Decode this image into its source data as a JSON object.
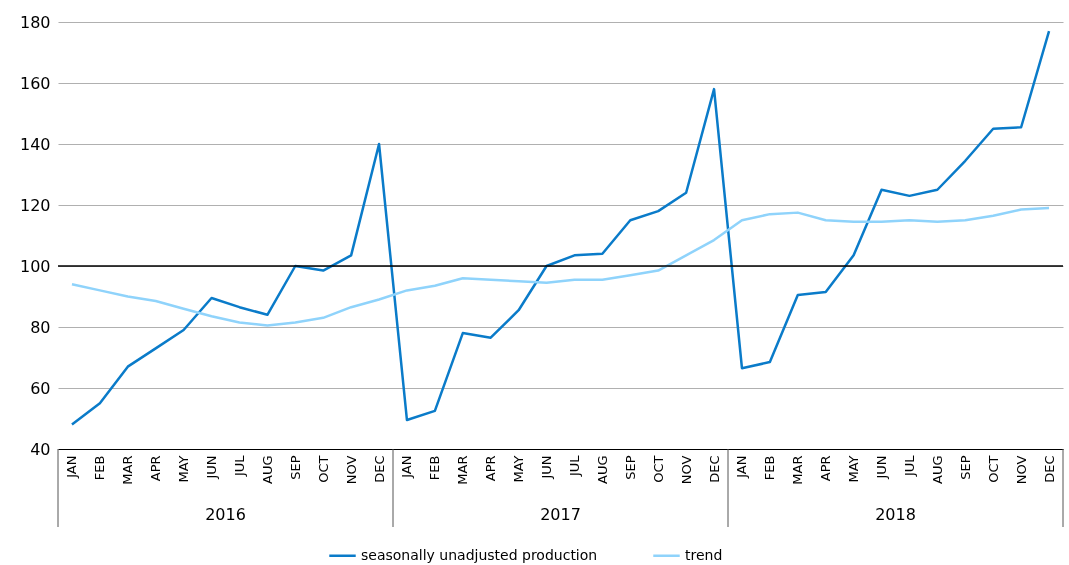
{
  "chart_data": {
    "type": "line",
    "categories": [
      "JAN",
      "FEB",
      "MAR",
      "APR",
      "MAY",
      "JUN",
      "JUL",
      "AUG",
      "SEP",
      "OCT",
      "NOV",
      "DEC",
      "JAN",
      "FEB",
      "MAR",
      "APR",
      "MAY",
      "JUN",
      "JUL",
      "AUG",
      "SEP",
      "OCT",
      "NOV",
      "DEC",
      "JAN",
      "FEB",
      "MAR",
      "APR",
      "MAY",
      "JUN",
      "JUL",
      "AUG",
      "SEP",
      "OCT",
      "NOV",
      "DEC"
    ],
    "series": [
      {
        "name": "seasonally unadjusted production",
        "color": "#0a7bc9",
        "values": [
          48,
          55,
          67,
          73,
          79,
          89.5,
          86.5,
          84,
          100,
          98.5,
          103.5,
          140,
          49.5,
          52.5,
          78,
          76.5,
          85.5,
          100,
          103.5,
          104,
          115,
          118,
          124,
          158,
          66.5,
          68.5,
          90.5,
          91.5,
          103.5,
          125,
          123,
          125,
          134.5,
          145,
          145.5,
          177
        ]
      },
      {
        "name": "trend",
        "color": "#8fd3fb",
        "values": [
          94,
          92,
          90,
          88.5,
          86,
          83.5,
          81.5,
          80.5,
          81.5,
          83,
          86.5,
          89,
          92,
          93.5,
          96,
          95.5,
          95,
          94.5,
          95.5,
          95.5,
          97,
          98.5,
          103.5,
          108.5,
          115,
          117,
          117.5,
          115,
          114.5,
          114.5,
          115,
          114.5,
          115,
          116.5,
          118.5,
          119
        ]
      }
    ],
    "ylim": [
      40,
      180
    ],
    "yticks": [
      40,
      60,
      80,
      100,
      120,
      140,
      160,
      180
    ],
    "grid": "y",
    "legend": "bottom",
    "line_style": "solid",
    "ref_lines": [
      {
        "axis": "y",
        "value": 100,
        "color": "#000000"
      }
    ],
    "annotations": [
      "2016",
      "2017",
      "2018"
    ]
  }
}
